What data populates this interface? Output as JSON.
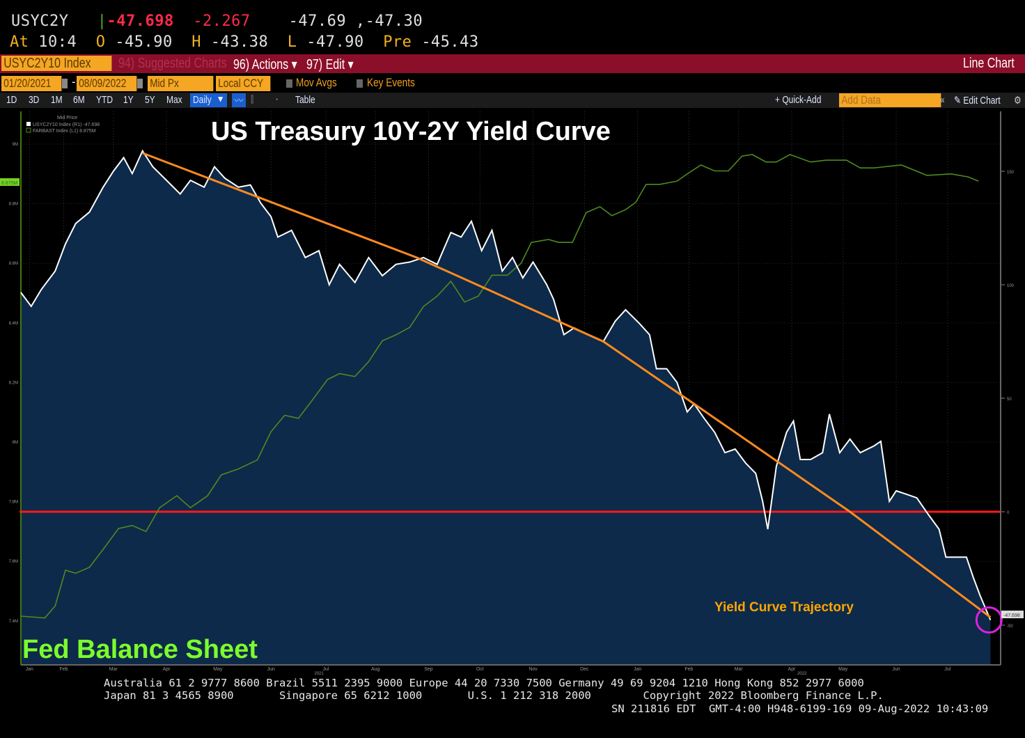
{
  "quote": {
    "ticker": "USYC2Y",
    "last": "-47.698",
    "change": "-2.267",
    "bid_ask": "-47.69 ,-47.30",
    "at_label": "At",
    "at_time": "10:4",
    "open_label": "O",
    "open": "-45.90",
    "high_label": "H",
    "high": "-43.38",
    "low_label": "L",
    "low": "-47.90",
    "prev_label": "Pre",
    "prev": "-45.43"
  },
  "toolbar": {
    "security": "USYC2Y10 Index",
    "suggested": "94) Suggested Charts",
    "actions": "96) Actions",
    "edit": "97) Edit",
    "chart_type": "Line Chart",
    "start_date": "01/20/2021",
    "end_date": "08/09/2022",
    "price_field": "Mid Px",
    "currency": "Local CCY",
    "mov_avgs": "Mov Avgs",
    "key_events": "Key Events",
    "periods": [
      "1D",
      "3D",
      "1M",
      "6M",
      "YTD",
      "1Y",
      "5Y",
      "Max"
    ],
    "frequency": "Daily",
    "table": "Table",
    "quick_add": "+ Quick-Add",
    "add_data_placeholder": "Add Data",
    "edit_chart": "Edit Chart"
  },
  "footer": {
    "line1": "Australia 61 2 9777 8600 Brazil 5511 2395 9000 Europe 44 20 7330 7500 Germany 49 69 9204 1210 Hong Kong 852 2977 6000",
    "line2": "Japan 81 3 4565 8900       Singapore 65 6212 1000       U.S. 1 212 318 2000        Copyright 2022 Bloomberg Finance L.P.",
    "line3": "SN 211816 EDT  GMT-4:00 H948-6199-169 09-Aug-2022 10:43:09"
  },
  "chart_data": {
    "type": "line",
    "title": "US Treasury 10Y-2Y Yield Curve",
    "annotations": {
      "trajectory": "Yield Curve Trajectory",
      "balance_sheet": "Fed Balance Sheet"
    },
    "legend": {
      "header": "Mid Price",
      "entries": [
        "USYC2Y10 Index (R1) -47.698",
        "FARBAST Index (L1) 8.875M"
      ],
      "placement": "top-left"
    },
    "x_ticks": [
      "Jan",
      "Feb",
      "Mar",
      "Apr",
      "May",
      "Jun",
      "Jul",
      "Aug",
      "Sep",
      "Oct",
      "Nov",
      "Dec",
      "Jan",
      "Feb",
      "Mar",
      "Apr",
      "May",
      "Jun",
      "Jul"
    ],
    "x_tick_dates": [
      "2021-01-25",
      "2021-02-14",
      "2021-03-15",
      "2021-04-15",
      "2021-05-15",
      "2021-06-15",
      "2021-07-17",
      "2021-08-15",
      "2021-09-15",
      "2021-10-15",
      "2021-11-15",
      "2021-12-15",
      "2022-01-15",
      "2022-02-14",
      "2022-03-15",
      "2022-04-15",
      "2022-05-15",
      "2022-06-15",
      "2022-07-15"
    ],
    "year_labels": [
      {
        "label": "2021",
        "date": "2021-07-13"
      },
      {
        "label": "2022",
        "date": "2022-04-21"
      }
    ],
    "xlim": [
      "2021-01-20",
      "2022-08-09"
    ],
    "right_axis": {
      "ticks": [
        150,
        100,
        50,
        0,
        -50
      ],
      "ylim": [
        -66,
        180
      ]
    },
    "left_axis": {
      "ticks": [
        "9M",
        "8.8M",
        "8.6M",
        "8.4M",
        "8.2M",
        "8M",
        "7.8M",
        "7.6M",
        "7.4M"
      ],
      "tick_values": [
        9.0,
        8.8,
        8.6,
        8.4,
        8.2,
        8.0,
        7.8,
        7.6,
        7.4
      ],
      "unit": "M"
    },
    "last_value_label": "-47.698",
    "left_last_label": "8.875M",
    "grid": true,
    "zero_line": 0,
    "colors": {
      "yield": "#ffffff",
      "area": "#0d2a4a",
      "balance": "#4f8a1e",
      "trend": "#ff8a1f",
      "zero": "#ff1a1a",
      "circle": "#e020e0",
      "annot_green": "#7cfc2c",
      "annot_orange": "#ffa500"
    },
    "series": [
      {
        "name": "USYC2Y10 Index",
        "axis": "right",
        "points": [
          [
            "2021-01-20",
            96.6
          ],
          [
            "2021-01-26",
            90.5
          ],
          [
            "2021-02-01",
            98
          ],
          [
            "2021-02-09",
            106
          ],
          [
            "2021-02-15",
            118
          ],
          [
            "2021-02-21",
            127
          ],
          [
            "2021-03-01",
            132
          ],
          [
            "2021-03-09",
            143
          ],
          [
            "2021-03-15",
            150
          ],
          [
            "2021-03-21",
            156
          ],
          [
            "2021-03-26",
            149
          ],
          [
            "2021-04-01",
            159
          ],
          [
            "2021-04-07",
            152
          ],
          [
            "2021-04-15",
            146
          ],
          [
            "2021-04-23",
            140
          ],
          [
            "2021-04-29",
            146
          ],
          [
            "2021-05-07",
            143
          ],
          [
            "2021-05-13",
            152
          ],
          [
            "2021-05-19",
            147
          ],
          [
            "2021-05-27",
            143
          ],
          [
            "2021-06-03",
            144
          ],
          [
            "2021-06-09",
            136
          ],
          [
            "2021-06-15",
            130
          ],
          [
            "2021-06-19",
            121
          ],
          [
            "2021-06-27",
            124
          ],
          [
            "2021-07-05",
            112
          ],
          [
            "2021-07-13",
            115
          ],
          [
            "2021-07-19",
            100
          ],
          [
            "2021-07-25",
            109
          ],
          [
            "2021-08-03",
            101
          ],
          [
            "2021-08-11",
            112
          ],
          [
            "2021-08-19",
            104
          ],
          [
            "2021-08-27",
            109
          ],
          [
            "2021-09-04",
            110
          ],
          [
            "2021-09-12",
            112
          ],
          [
            "2021-09-20",
            109
          ],
          [
            "2021-09-28",
            123
          ],
          [
            "2021-10-04",
            121
          ],
          [
            "2021-10-10",
            128
          ],
          [
            "2021-10-16",
            115
          ],
          [
            "2021-10-22",
            124
          ],
          [
            "2021-10-28",
            106
          ],
          [
            "2021-11-03",
            112
          ],
          [
            "2021-11-09",
            103
          ],
          [
            "2021-11-15",
            110
          ],
          [
            "2021-11-23",
            100
          ],
          [
            "2021-11-27",
            93.5
          ],
          [
            "2021-12-03",
            78
          ],
          [
            "2021-12-09",
            81
          ],
          [
            "2021-12-17",
            78
          ],
          [
            "2021-12-26",
            75
          ],
          [
            "2022-01-02",
            84
          ],
          [
            "2022-01-08",
            89
          ],
          [
            "2022-01-16",
            83
          ],
          [
            "2022-01-22",
            78
          ],
          [
            "2022-01-26",
            63
          ],
          [
            "2022-02-01",
            63
          ],
          [
            "2022-02-07",
            57
          ],
          [
            "2022-02-13",
            44
          ],
          [
            "2022-02-17",
            47.5
          ],
          [
            "2022-02-23",
            41
          ],
          [
            "2022-03-01",
            35
          ],
          [
            "2022-03-07",
            26
          ],
          [
            "2022-03-13",
            27.6
          ],
          [
            "2022-03-19",
            21.5
          ],
          [
            "2022-03-25",
            16.9
          ],
          [
            "2022-03-29",
            4.6
          ],
          [
            "2022-04-01",
            -7.7
          ],
          [
            "2022-04-06",
            20
          ],
          [
            "2022-04-12",
            35
          ],
          [
            "2022-04-16",
            40
          ],
          [
            "2022-04-20",
            23
          ],
          [
            "2022-04-26",
            23
          ],
          [
            "2022-05-03",
            26
          ],
          [
            "2022-05-07",
            43
          ],
          [
            "2022-05-13",
            26
          ],
          [
            "2022-05-19",
            32
          ],
          [
            "2022-05-25",
            26
          ],
          [
            "2022-06-02",
            29
          ],
          [
            "2022-06-06",
            31
          ],
          [
            "2022-06-11",
            4.6
          ],
          [
            "2022-06-15",
            9.2
          ],
          [
            "2022-06-21",
            7.7
          ],
          [
            "2022-06-27",
            6.1
          ],
          [
            "2022-07-04",
            -1.5
          ],
          [
            "2022-07-10",
            -7.7
          ],
          [
            "2022-07-14",
            -20
          ],
          [
            "2022-07-20",
            -20
          ],
          [
            "2022-07-26",
            -20
          ],
          [
            "2022-07-30",
            -29
          ],
          [
            "2022-08-03",
            -37
          ],
          [
            "2022-08-09",
            -47.7
          ]
        ]
      },
      {
        "name": "FARBAST Index",
        "axis": "left",
        "points": [
          [
            "2021-01-20",
            7.416
          ],
          [
            "2021-02-03",
            7.41
          ],
          [
            "2021-02-09",
            7.45
          ],
          [
            "2021-02-15",
            7.57
          ],
          [
            "2021-02-21",
            7.56
          ],
          [
            "2021-03-01",
            7.58
          ],
          [
            "2021-03-09",
            7.64
          ],
          [
            "2021-03-18",
            7.71
          ],
          [
            "2021-03-26",
            7.72
          ],
          [
            "2021-04-03",
            7.7
          ],
          [
            "2021-04-11",
            7.78
          ],
          [
            "2021-04-21",
            7.82
          ],
          [
            "2021-04-29",
            7.78
          ],
          [
            "2021-05-09",
            7.82
          ],
          [
            "2021-05-17",
            7.89
          ],
          [
            "2021-05-27",
            7.91
          ],
          [
            "2021-06-07",
            7.94
          ],
          [
            "2021-06-15",
            8.035
          ],
          [
            "2021-06-23",
            8.09
          ],
          [
            "2021-07-01",
            8.08
          ],
          [
            "2021-07-09",
            8.14
          ],
          [
            "2021-07-18",
            8.21
          ],
          [
            "2021-07-25",
            8.23
          ],
          [
            "2021-08-03",
            8.22
          ],
          [
            "2021-08-11",
            8.27
          ],
          [
            "2021-08-19",
            8.34
          ],
          [
            "2021-08-27",
            8.36
          ],
          [
            "2021-09-04",
            8.385
          ],
          [
            "2021-09-12",
            8.455
          ],
          [
            "2021-09-20",
            8.49
          ],
          [
            "2021-09-28",
            8.54
          ],
          [
            "2021-10-06",
            8.47
          ],
          [
            "2021-10-14",
            8.49
          ],
          [
            "2021-10-22",
            8.56
          ],
          [
            "2021-10-31",
            8.56
          ],
          [
            "2021-11-08",
            8.6
          ],
          [
            "2021-11-14",
            8.67
          ],
          [
            "2021-11-24",
            8.68
          ],
          [
            "2021-11-30",
            8.67
          ],
          [
            "2021-12-08",
            8.67
          ],
          [
            "2021-12-16",
            8.77
          ],
          [
            "2021-12-24",
            8.79
          ],
          [
            "2021-12-31",
            8.76
          ],
          [
            "2022-01-08",
            8.78
          ],
          [
            "2022-01-14",
            8.805
          ],
          [
            "2022-01-20",
            8.865
          ],
          [
            "2022-01-28",
            8.865
          ],
          [
            "2022-02-07",
            8.876
          ],
          [
            "2022-02-13",
            8.9
          ],
          [
            "2022-02-21",
            8.93
          ],
          [
            "2022-03-01",
            8.91
          ],
          [
            "2022-03-09",
            8.91
          ],
          [
            "2022-03-17",
            8.96
          ],
          [
            "2022-03-23",
            8.965
          ],
          [
            "2022-03-31",
            8.94
          ],
          [
            "2022-04-06",
            8.94
          ],
          [
            "2022-04-14",
            8.965
          ],
          [
            "2022-04-26",
            8.94
          ],
          [
            "2022-05-05",
            8.946
          ],
          [
            "2022-05-17",
            8.946
          ],
          [
            "2022-05-25",
            8.92
          ],
          [
            "2022-06-02",
            8.92
          ],
          [
            "2022-06-18",
            8.93
          ],
          [
            "2022-07-03",
            8.895
          ],
          [
            "2022-07-17",
            8.9
          ],
          [
            "2022-07-27",
            8.89
          ],
          [
            "2022-08-02",
            8.876
          ]
        ]
      },
      {
        "name": "Yield Curve Trajectory",
        "axis": "right",
        "points": [
          [
            "2021-04-01",
            158
          ],
          [
            "2021-09-08",
            112
          ],
          [
            "2021-12-26",
            75
          ],
          [
            "2022-02-17",
            47.5
          ],
          [
            "2022-05-19",
            0
          ],
          [
            "2022-08-09",
            -46.5
          ]
        ]
      }
    ]
  }
}
